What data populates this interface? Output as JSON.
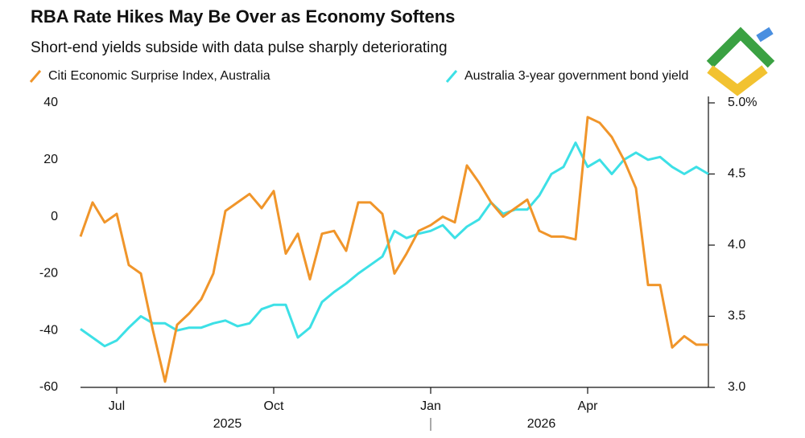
{
  "chart_data": {
    "type": "line",
    "title": "RBA Rate Hikes May Be Over as Economy Softens",
    "subtitle": "Short-end yields subside with data pulse sharply deteriorating",
    "categories": [
      null,
      null,
      null,
      "Jul",
      null,
      null,
      null,
      null,
      null,
      null,
      null,
      null,
      null,
      null,
      null,
      null,
      "Oct",
      null,
      null,
      null,
      null,
      null,
      null,
      null,
      null,
      null,
      null,
      null,
      null,
      "Jan",
      null,
      null,
      null,
      null,
      null,
      null,
      null,
      null,
      null,
      null,
      null,
      null,
      "Apr",
      null,
      null,
      null,
      null,
      null,
      null,
      null,
      null,
      null,
      null
    ],
    "year_labels": [
      "2025",
      "2026"
    ],
    "series": [
      {
        "name": "Citi Economic Surprise Index, Australia",
        "color": "#f0952a",
        "axis": "y",
        "values": [
          -7,
          5,
          -2,
          1,
          -17,
          -20,
          -40,
          -58,
          -38,
          -34,
          -29,
          -20,
          2,
          5,
          8,
          3,
          9,
          -13,
          -6,
          -22,
          -6,
          -5,
          -12,
          5,
          5,
          1,
          -20,
          -13,
          -5,
          -3,
          0,
          -2,
          18,
          12,
          5,
          0,
          3,
          6,
          -5,
          -7,
          -7,
          -8,
          35,
          33,
          28,
          20,
          10,
          -24,
          -24,
          -46,
          -42,
          -45,
          -45
        ]
      },
      {
        "name": "Australia 3-year government bond yield",
        "color": "#3de0e6",
        "axis": "y2",
        "values": [
          3.41,
          3.35,
          3.29,
          3.33,
          3.42,
          3.5,
          3.45,
          3.45,
          3.4,
          3.42,
          3.42,
          3.45,
          3.47,
          3.43,
          3.45,
          3.55,
          3.58,
          3.58,
          3.35,
          3.42,
          3.6,
          3.67,
          3.73,
          3.8,
          3.86,
          3.92,
          4.1,
          4.05,
          4.08,
          4.1,
          4.14,
          4.05,
          4.13,
          4.18,
          4.3,
          4.22,
          4.25,
          4.25,
          4.35,
          4.5,
          4.55,
          4.72,
          4.55,
          4.6,
          4.5,
          4.6,
          4.65,
          4.6,
          4.62,
          4.55,
          4.5,
          4.55,
          4.5
        ]
      }
    ],
    "ylim": [
      -60,
      40
    ],
    "yticks": [
      40,
      20,
      0,
      -20,
      -40,
      -60
    ],
    "y2lim": [
      3,
      5
    ],
    "y2ticks": [
      {
        "value": 5,
        "label": "5.0%"
      },
      4.5,
      {
        "value": 4,
        "label": "4.0"
      },
      3.5,
      {
        "value": 3,
        "label": "3.0"
      }
    ],
    "grid": false
  }
}
